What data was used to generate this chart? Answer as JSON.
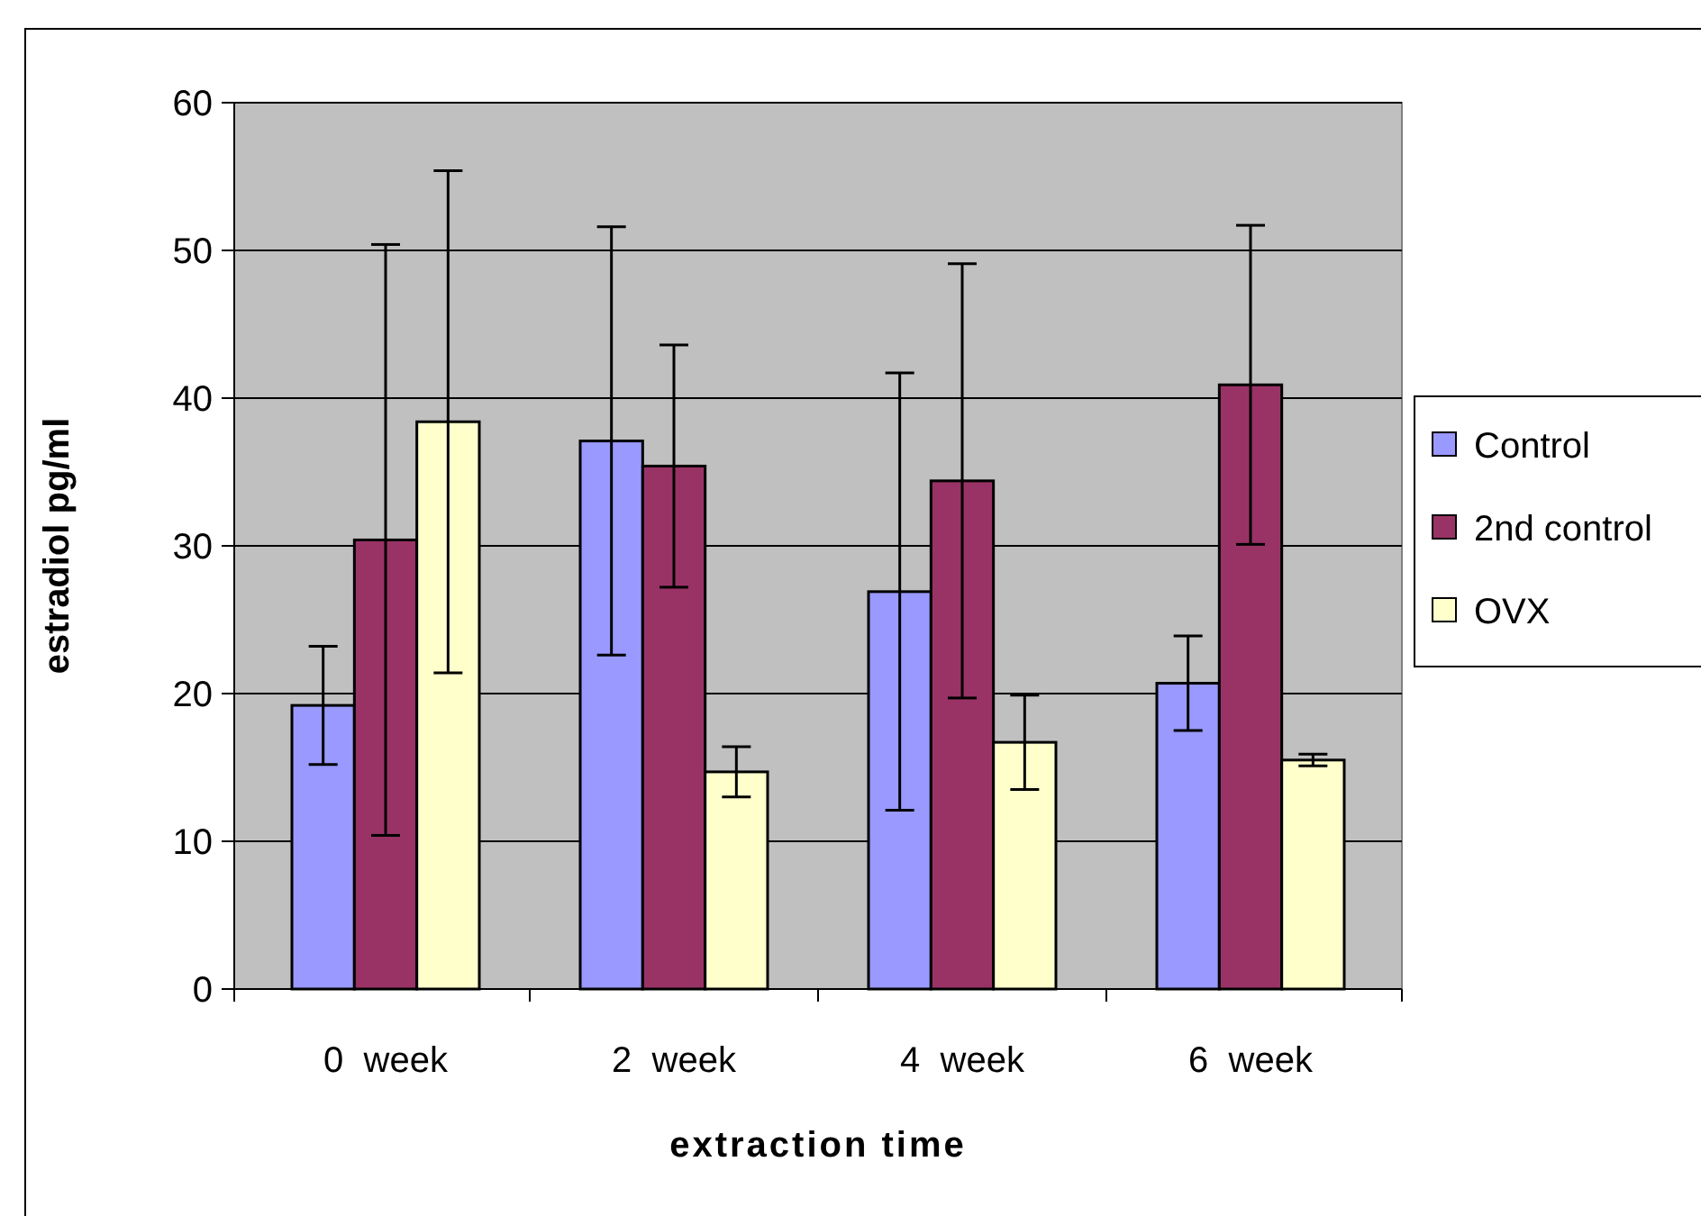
{
  "chart_data": {
    "type": "bar",
    "xlabel": "extraction time",
    "ylabel": "estradiol pg/ml",
    "categories": [
      "0  week",
      "2  week",
      "4  week",
      "6  week"
    ],
    "series": [
      {
        "name": "Control",
        "color": "#9999ff",
        "values": [
          19.2,
          37.1,
          26.9,
          20.7
        ],
        "errors": [
          4,
          14.5,
          14.8,
          3.2
        ]
      },
      {
        "name": "2nd control",
        "color": "#993366",
        "values": [
          30.4,
          35.4,
          34.4,
          40.9
        ],
        "errors": [
          20,
          8.2,
          14.7,
          10.8
        ]
      },
      {
        "name": "OVX",
        "color": "#ffffcc",
        "values": [
          38.4,
          14.7,
          16.7,
          15.5
        ],
        "errors": [
          17,
          1.7,
          3.2,
          0.4
        ]
      }
    ],
    "ylim": [
      0,
      60
    ],
    "yticks": [
      0,
      10,
      20,
      30,
      40,
      50,
      60
    ],
    "grid": "y",
    "legend": "right"
  }
}
